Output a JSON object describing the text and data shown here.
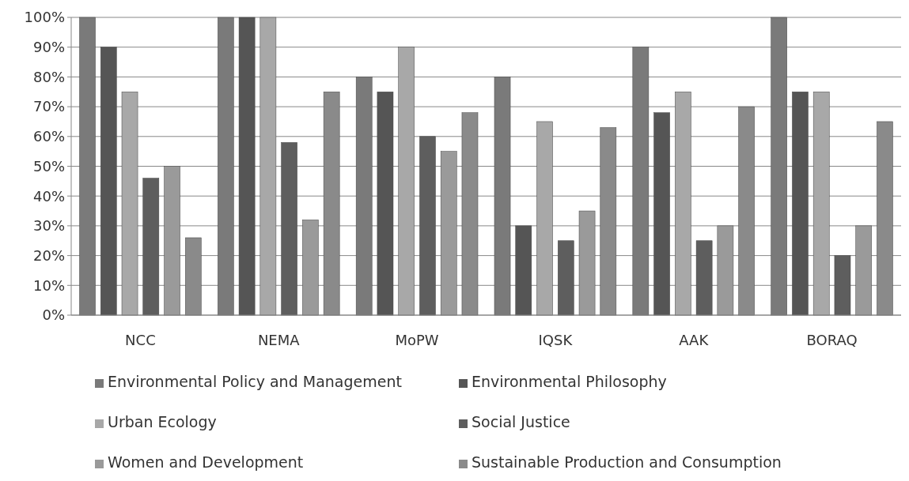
{
  "chart_data": {
    "type": "bar",
    "categories": [
      "NCC",
      "NEMA",
      "MoPW",
      "IQSK",
      "AAK",
      "BORAQ"
    ],
    "series": [
      {
        "name": "Environmental Policy and Management",
        "color": "#7a7a7a",
        "values": [
          100,
          100,
          80,
          80,
          90,
          100
        ]
      },
      {
        "name": "Environmental Philosophy",
        "color": "#555555",
        "values": [
          90,
          100,
          75,
          30,
          68,
          75
        ]
      },
      {
        "name": "Urban Ecology",
        "color": "#a8a8a8",
        "values": [
          75,
          100,
          90,
          65,
          75,
          75
        ]
      },
      {
        "name": "Social Justice",
        "color": "#5e5e5e",
        "values": [
          46,
          58,
          60,
          25,
          25,
          20
        ]
      },
      {
        "name": "Women and Development",
        "color": "#9a9a9a",
        "values": [
          50,
          32,
          55,
          35,
          30,
          30
        ]
      },
      {
        "name": "Sustainable Production and Consumption",
        "color": "#8a8a8a",
        "values": [
          26,
          75,
          68,
          63,
          70,
          65
        ]
      }
    ],
    "ylim": [
      0,
      100
    ],
    "yticks": [
      {
        "value": 0,
        "label": "0%"
      },
      {
        "value": 10,
        "label": "10%"
      },
      {
        "value": 20,
        "label": "20%"
      },
      {
        "value": 30,
        "label": "30%"
      },
      {
        "value": 40,
        "label": "40%"
      },
      {
        "value": 50,
        "label": "50%"
      },
      {
        "value": 60,
        "label": "60%"
      },
      {
        "value": 70,
        "label": "70%"
      },
      {
        "value": 80,
        "label": "80%"
      },
      {
        "value": 90,
        "label": "90%"
      },
      {
        "value": 100,
        "label": "100%"
      }
    ],
    "grid": "y",
    "legend": "bottom"
  }
}
